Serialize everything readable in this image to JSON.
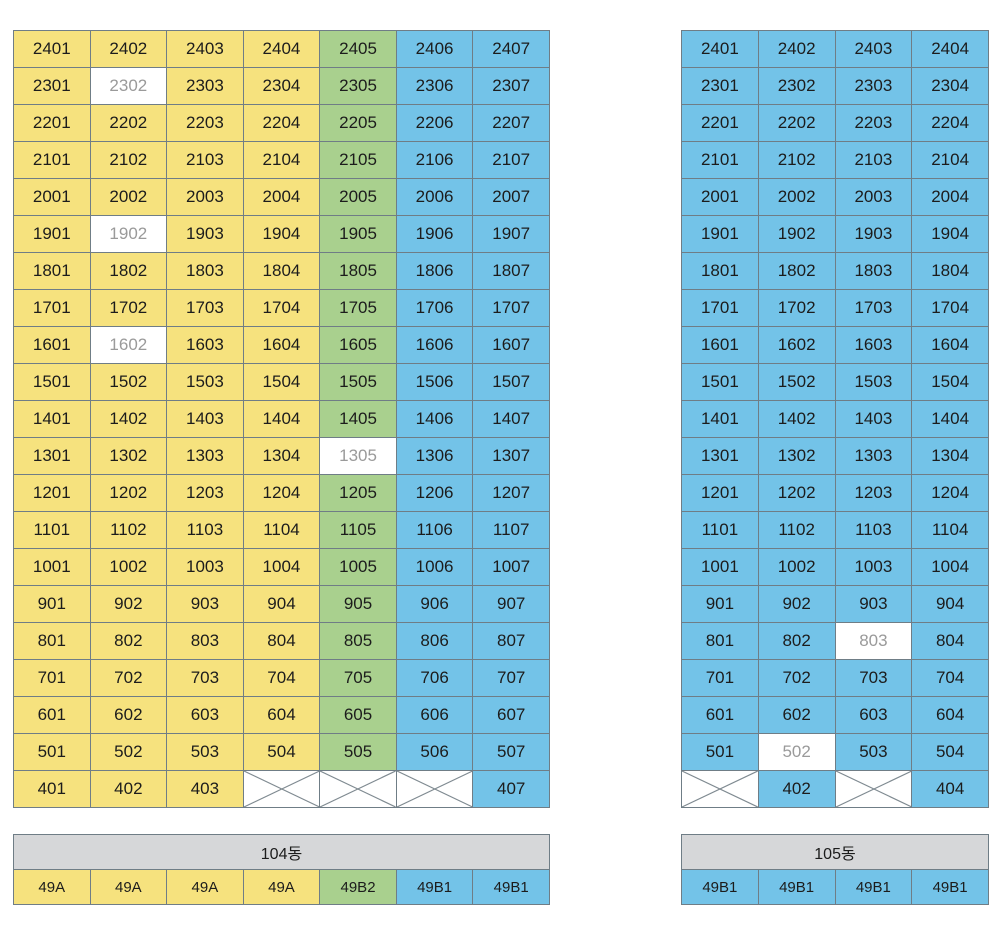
{
  "colors": {
    "yellow": "#f6e27e",
    "green": "#a9d08e",
    "blue": "#73c3e8",
    "header_gray": "#d6d7d9",
    "unavailable_text": "#9a9a9a"
  },
  "legend_codes": {
    "y": "yellow",
    "g": "green",
    "b": "blue",
    "w": "white (unavailable)",
    "x": "crossed-out (no unit)"
  },
  "building_104": {
    "label": "104동",
    "types": [
      {
        "label": "49A",
        "color": "y"
      },
      {
        "label": "49A",
        "color": "y"
      },
      {
        "label": "49A",
        "color": "y"
      },
      {
        "label": "49A",
        "color": "y"
      },
      {
        "label": "49B2",
        "color": "g"
      },
      {
        "label": "49B1",
        "color": "b"
      },
      {
        "label": "49B1",
        "color": "b"
      }
    ],
    "rows": [
      [
        [
          "2401",
          "y"
        ],
        [
          "2402",
          "y"
        ],
        [
          "2403",
          "y"
        ],
        [
          "2404",
          "y"
        ],
        [
          "2405",
          "g"
        ],
        [
          "2406",
          "b"
        ],
        [
          "2407",
          "b"
        ]
      ],
      [
        [
          "2301",
          "y"
        ],
        [
          "2302",
          "w"
        ],
        [
          "2303",
          "y"
        ],
        [
          "2304",
          "y"
        ],
        [
          "2305",
          "g"
        ],
        [
          "2306",
          "b"
        ],
        [
          "2307",
          "b"
        ]
      ],
      [
        [
          "2201",
          "y"
        ],
        [
          "2202",
          "y"
        ],
        [
          "2203",
          "y"
        ],
        [
          "2204",
          "y"
        ],
        [
          "2205",
          "g"
        ],
        [
          "2206",
          "b"
        ],
        [
          "2207",
          "b"
        ]
      ],
      [
        [
          "2101",
          "y"
        ],
        [
          "2102",
          "y"
        ],
        [
          "2103",
          "y"
        ],
        [
          "2104",
          "y"
        ],
        [
          "2105",
          "g"
        ],
        [
          "2106",
          "b"
        ],
        [
          "2107",
          "b"
        ]
      ],
      [
        [
          "2001",
          "y"
        ],
        [
          "2002",
          "y"
        ],
        [
          "2003",
          "y"
        ],
        [
          "2004",
          "y"
        ],
        [
          "2005",
          "g"
        ],
        [
          "2006",
          "b"
        ],
        [
          "2007",
          "b"
        ]
      ],
      [
        [
          "1901",
          "y"
        ],
        [
          "1902",
          "w"
        ],
        [
          "1903",
          "y"
        ],
        [
          "1904",
          "y"
        ],
        [
          "1905",
          "g"
        ],
        [
          "1906",
          "b"
        ],
        [
          "1907",
          "b"
        ]
      ],
      [
        [
          "1801",
          "y"
        ],
        [
          "1802",
          "y"
        ],
        [
          "1803",
          "y"
        ],
        [
          "1804",
          "y"
        ],
        [
          "1805",
          "g"
        ],
        [
          "1806",
          "b"
        ],
        [
          "1807",
          "b"
        ]
      ],
      [
        [
          "1701",
          "y"
        ],
        [
          "1702",
          "y"
        ],
        [
          "1703",
          "y"
        ],
        [
          "1704",
          "y"
        ],
        [
          "1705",
          "g"
        ],
        [
          "1706",
          "b"
        ],
        [
          "1707",
          "b"
        ]
      ],
      [
        [
          "1601",
          "y"
        ],
        [
          "1602",
          "w"
        ],
        [
          "1603",
          "y"
        ],
        [
          "1604",
          "y"
        ],
        [
          "1605",
          "g"
        ],
        [
          "1606",
          "b"
        ],
        [
          "1607",
          "b"
        ]
      ],
      [
        [
          "1501",
          "y"
        ],
        [
          "1502",
          "y"
        ],
        [
          "1503",
          "y"
        ],
        [
          "1504",
          "y"
        ],
        [
          "1505",
          "g"
        ],
        [
          "1506",
          "b"
        ],
        [
          "1507",
          "b"
        ]
      ],
      [
        [
          "1401",
          "y"
        ],
        [
          "1402",
          "y"
        ],
        [
          "1403",
          "y"
        ],
        [
          "1404",
          "y"
        ],
        [
          "1405",
          "g"
        ],
        [
          "1406",
          "b"
        ],
        [
          "1407",
          "b"
        ]
      ],
      [
        [
          "1301",
          "y"
        ],
        [
          "1302",
          "y"
        ],
        [
          "1303",
          "y"
        ],
        [
          "1304",
          "y"
        ],
        [
          "1305",
          "w"
        ],
        [
          "1306",
          "b"
        ],
        [
          "1307",
          "b"
        ]
      ],
      [
        [
          "1201",
          "y"
        ],
        [
          "1202",
          "y"
        ],
        [
          "1203",
          "y"
        ],
        [
          "1204",
          "y"
        ],
        [
          "1205",
          "g"
        ],
        [
          "1206",
          "b"
        ],
        [
          "1207",
          "b"
        ]
      ],
      [
        [
          "1101",
          "y"
        ],
        [
          "1102",
          "y"
        ],
        [
          "1103",
          "y"
        ],
        [
          "1104",
          "y"
        ],
        [
          "1105",
          "g"
        ],
        [
          "1106",
          "b"
        ],
        [
          "1107",
          "b"
        ]
      ],
      [
        [
          "1001",
          "y"
        ],
        [
          "1002",
          "y"
        ],
        [
          "1003",
          "y"
        ],
        [
          "1004",
          "y"
        ],
        [
          "1005",
          "g"
        ],
        [
          "1006",
          "b"
        ],
        [
          "1007",
          "b"
        ]
      ],
      [
        [
          "901",
          "y"
        ],
        [
          "902",
          "y"
        ],
        [
          "903",
          "y"
        ],
        [
          "904",
          "y"
        ],
        [
          "905",
          "g"
        ],
        [
          "906",
          "b"
        ],
        [
          "907",
          "b"
        ]
      ],
      [
        [
          "801",
          "y"
        ],
        [
          "802",
          "y"
        ],
        [
          "803",
          "y"
        ],
        [
          "804",
          "y"
        ],
        [
          "805",
          "g"
        ],
        [
          "806",
          "b"
        ],
        [
          "807",
          "b"
        ]
      ],
      [
        [
          "701",
          "y"
        ],
        [
          "702",
          "y"
        ],
        [
          "703",
          "y"
        ],
        [
          "704",
          "y"
        ],
        [
          "705",
          "g"
        ],
        [
          "706",
          "b"
        ],
        [
          "707",
          "b"
        ]
      ],
      [
        [
          "601",
          "y"
        ],
        [
          "602",
          "y"
        ],
        [
          "603",
          "y"
        ],
        [
          "604",
          "y"
        ],
        [
          "605",
          "g"
        ],
        [
          "606",
          "b"
        ],
        [
          "607",
          "b"
        ]
      ],
      [
        [
          "501",
          "y"
        ],
        [
          "502",
          "y"
        ],
        [
          "503",
          "y"
        ],
        [
          "504",
          "y"
        ],
        [
          "505",
          "g"
        ],
        [
          "506",
          "b"
        ],
        [
          "507",
          "b"
        ]
      ],
      [
        [
          "401",
          "y"
        ],
        [
          "402",
          "y"
        ],
        [
          "403",
          "y"
        ],
        [
          "",
          "x"
        ],
        [
          "",
          "x"
        ],
        [
          "",
          "x"
        ],
        [
          "407",
          "b"
        ]
      ]
    ]
  },
  "building_105": {
    "label": "105동",
    "types": [
      {
        "label": "49B1",
        "color": "b"
      },
      {
        "label": "49B1",
        "color": "b"
      },
      {
        "label": "49B1",
        "color": "b"
      },
      {
        "label": "49B1",
        "color": "b"
      }
    ],
    "rows": [
      [
        [
          "2401",
          "b"
        ],
        [
          "2402",
          "b"
        ],
        [
          "2403",
          "b"
        ],
        [
          "2404",
          "b"
        ]
      ],
      [
        [
          "2301",
          "b"
        ],
        [
          "2302",
          "b"
        ],
        [
          "2303",
          "b"
        ],
        [
          "2304",
          "b"
        ]
      ],
      [
        [
          "2201",
          "b"
        ],
        [
          "2202",
          "b"
        ],
        [
          "2203",
          "b"
        ],
        [
          "2204",
          "b"
        ]
      ],
      [
        [
          "2101",
          "b"
        ],
        [
          "2102",
          "b"
        ],
        [
          "2103",
          "b"
        ],
        [
          "2104",
          "b"
        ]
      ],
      [
        [
          "2001",
          "b"
        ],
        [
          "2002",
          "b"
        ],
        [
          "2003",
          "b"
        ],
        [
          "2004",
          "b"
        ]
      ],
      [
        [
          "1901",
          "b"
        ],
        [
          "1902",
          "b"
        ],
        [
          "1903",
          "b"
        ],
        [
          "1904",
          "b"
        ]
      ],
      [
        [
          "1801",
          "b"
        ],
        [
          "1802",
          "b"
        ],
        [
          "1803",
          "b"
        ],
        [
          "1804",
          "b"
        ]
      ],
      [
        [
          "1701",
          "b"
        ],
        [
          "1702",
          "b"
        ],
        [
          "1703",
          "b"
        ],
        [
          "1704",
          "b"
        ]
      ],
      [
        [
          "1601",
          "b"
        ],
        [
          "1602",
          "b"
        ],
        [
          "1603",
          "b"
        ],
        [
          "1604",
          "b"
        ]
      ],
      [
        [
          "1501",
          "b"
        ],
        [
          "1502",
          "b"
        ],
        [
          "1503",
          "b"
        ],
        [
          "1504",
          "b"
        ]
      ],
      [
        [
          "1401",
          "b"
        ],
        [
          "1402",
          "b"
        ],
        [
          "1403",
          "b"
        ],
        [
          "1404",
          "b"
        ]
      ],
      [
        [
          "1301",
          "b"
        ],
        [
          "1302",
          "b"
        ],
        [
          "1303",
          "b"
        ],
        [
          "1304",
          "b"
        ]
      ],
      [
        [
          "1201",
          "b"
        ],
        [
          "1202",
          "b"
        ],
        [
          "1203",
          "b"
        ],
        [
          "1204",
          "b"
        ]
      ],
      [
        [
          "1101",
          "b"
        ],
        [
          "1102",
          "b"
        ],
        [
          "1103",
          "b"
        ],
        [
          "1104",
          "b"
        ]
      ],
      [
        [
          "1001",
          "b"
        ],
        [
          "1002",
          "b"
        ],
        [
          "1003",
          "b"
        ],
        [
          "1004",
          "b"
        ]
      ],
      [
        [
          "901",
          "b"
        ],
        [
          "902",
          "b"
        ],
        [
          "903",
          "b"
        ],
        [
          "904",
          "b"
        ]
      ],
      [
        [
          "801",
          "b"
        ],
        [
          "802",
          "b"
        ],
        [
          "803",
          "w"
        ],
        [
          "804",
          "b"
        ]
      ],
      [
        [
          "701",
          "b"
        ],
        [
          "702",
          "b"
        ],
        [
          "703",
          "b"
        ],
        [
          "704",
          "b"
        ]
      ],
      [
        [
          "601",
          "b"
        ],
        [
          "602",
          "b"
        ],
        [
          "603",
          "b"
        ],
        [
          "604",
          "b"
        ]
      ],
      [
        [
          "501",
          "b"
        ],
        [
          "502",
          "w"
        ],
        [
          "503",
          "b"
        ],
        [
          "504",
          "b"
        ]
      ],
      [
        [
          "",
          "x"
        ],
        [
          "402",
          "b"
        ],
        [
          "",
          "x"
        ],
        [
          "404",
          "b"
        ]
      ]
    ]
  }
}
